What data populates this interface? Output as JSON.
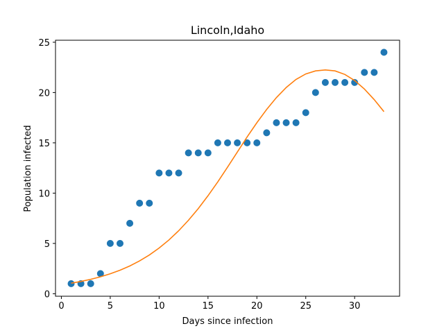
{
  "chart_data": {
    "type": "scatter",
    "title": "Lincoln,Idaho",
    "xlabel": "Days since infection",
    "ylabel": "Population infected",
    "xlim": [
      -0.6,
      34.6
    ],
    "ylim": [
      -0.25,
      25.2
    ],
    "xticks": [
      0,
      5,
      10,
      15,
      20,
      25,
      30
    ],
    "yticks": [
      0,
      5,
      10,
      15,
      20,
      25
    ],
    "grid": false,
    "series": [
      {
        "kind": "scatter",
        "color": "#1f77b4",
        "x": [
          1,
          2,
          3,
          4,
          5,
          6,
          7,
          8,
          9,
          10,
          11,
          12,
          13,
          14,
          15,
          16,
          17,
          18,
          19,
          20,
          21,
          22,
          23,
          24,
          25,
          26,
          27,
          28,
          29,
          30,
          31,
          32,
          33
        ],
        "y": [
          1,
          1,
          1,
          2,
          5,
          5,
          7,
          9,
          9,
          12,
          12,
          12,
          14,
          14,
          14,
          15,
          15,
          15,
          15,
          15,
          16,
          17,
          17,
          17,
          18,
          20,
          21,
          21,
          21,
          21,
          22,
          22,
          24
        ]
      },
      {
        "kind": "line",
        "color": "#ff7f0e",
        "x": [
          1,
          2,
          3,
          4,
          5,
          6,
          7,
          8,
          9,
          10,
          11,
          12,
          13,
          14,
          15,
          16,
          17,
          18,
          19,
          20,
          21,
          22,
          23,
          24,
          25,
          26,
          27,
          28,
          29,
          30,
          31,
          32,
          33
        ],
        "y": [
          1.05,
          1.22,
          1.43,
          1.68,
          1.98,
          2.34,
          2.76,
          3.26,
          3.85,
          4.54,
          5.34,
          6.26,
          7.3,
          8.46,
          9.74,
          11.12,
          12.58,
          14.08,
          15.58,
          17.0,
          18.32,
          19.5,
          20.5,
          21.3,
          21.85,
          22.15,
          22.25,
          22.15,
          21.8,
          21.2,
          20.35,
          19.3,
          18.1
        ]
      }
    ]
  }
}
